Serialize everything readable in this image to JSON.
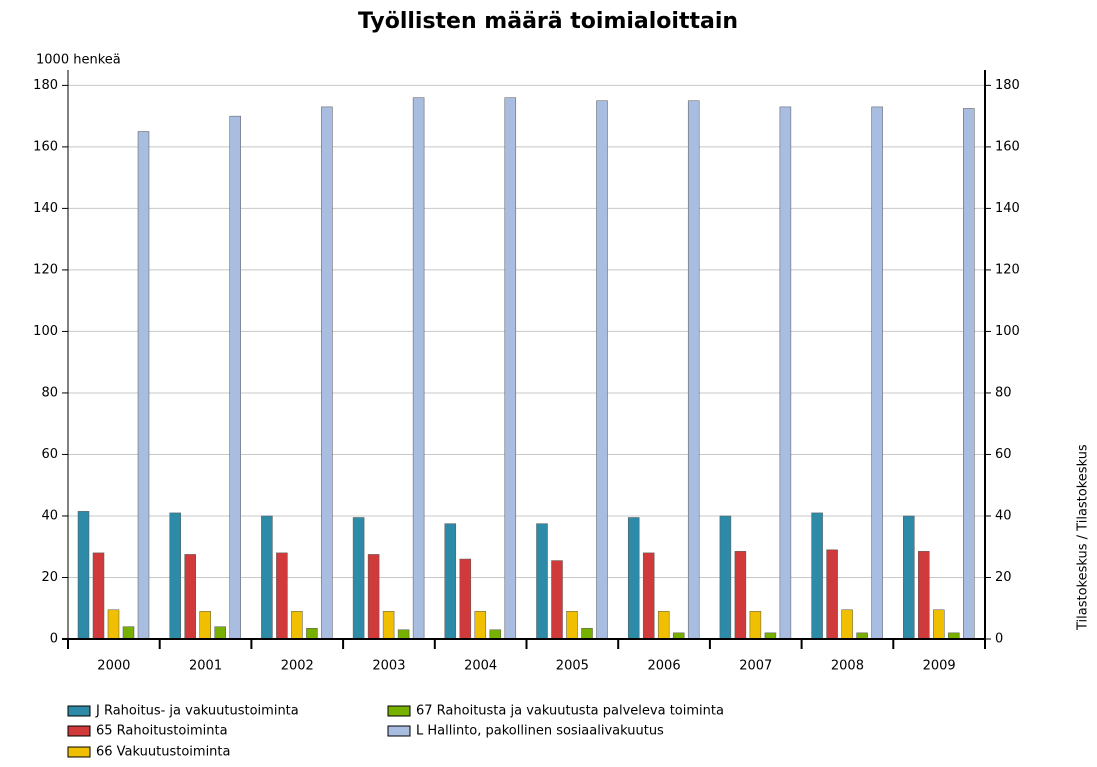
{
  "chart_data": {
    "type": "bar",
    "title": "Työllisten määrä toimialoittain",
    "ylabel": "1000 henkeä",
    "source": "Tilastokeskus / Tilastokeskus",
    "categories": [
      "2000",
      "2001",
      "2002",
      "2003",
      "2004",
      "2005",
      "2006",
      "2007",
      "2008",
      "2009"
    ],
    "series": [
      {
        "name": "J Rahoitus- ja vakuutustoiminta",
        "color": "#2e8ba8",
        "values": [
          41.5,
          41,
          40,
          39.5,
          37.5,
          37.5,
          39.5,
          40,
          41,
          40
        ]
      },
      {
        "name": "65 Rahoitustoiminta",
        "color": "#d03a3a",
        "values": [
          28,
          27.5,
          28,
          27.5,
          26,
          25.5,
          28,
          28.5,
          29,
          28.5
        ]
      },
      {
        "name": "66 Vakuutustoiminta",
        "color": "#f0c000",
        "values": [
          9.5,
          9,
          9,
          9,
          9,
          9,
          9,
          9,
          9.5,
          9.5
        ]
      },
      {
        "name": "67 Rahoitusta ja vakuutusta palveleva toiminta",
        "color": "#78b000",
        "values": [
          4,
          4,
          3.5,
          3,
          3,
          3.5,
          2,
          2,
          2,
          2
        ]
      },
      {
        "name": "L Hallinto, pakollinen sosiaalivakuutus",
        "color": "#a8bde0",
        "values": [
          165,
          170,
          173,
          176,
          176,
          175,
          175,
          173,
          173,
          172.5
        ]
      }
    ],
    "ylim": [
      0,
      185
    ],
    "yticks": [
      0,
      20,
      40,
      60,
      80,
      100,
      120,
      140,
      160,
      180
    ],
    "y2lim": [
      0,
      185
    ],
    "y2ticks": [
      0,
      20,
      40,
      60,
      80,
      100,
      120,
      140,
      160,
      180
    ],
    "grid": true
  }
}
